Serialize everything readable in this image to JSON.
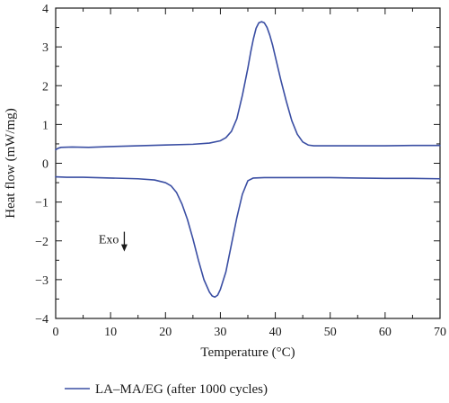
{
  "chart_data": {
    "type": "line",
    "xlabel": "Temperature (°C)",
    "ylabel": "Heat flow (mW/mg)",
    "xlim": [
      0,
      70
    ],
    "ylim": [
      -4,
      4
    ],
    "x_ticks": [
      0,
      10,
      20,
      30,
      40,
      50,
      60,
      70
    ],
    "y_ticks": [
      4,
      3,
      2,
      1,
      0,
      -1,
      -2,
      -3,
      -4
    ],
    "grid": false,
    "legend_position": "bottom",
    "annotation": {
      "text": "Exo",
      "arrow": "down",
      "x": 12.5,
      "y": -1.95
    },
    "series": [
      {
        "name": "LA–MA/EG (after 1000 cycles)",
        "color": "#3a4ea3",
        "segments": [
          {
            "x": [
              0,
              0.5,
              1,
              3,
              6,
              10,
              15,
              20,
              25,
              28,
              30,
              31,
              32,
              33,
              34,
              35,
              35.5,
              36,
              36.5,
              37,
              37.5,
              38,
              38.5,
              39,
              39.5,
              40,
              41,
              42,
              43,
              44,
              45,
              46,
              47,
              50,
              55,
              60,
              65,
              70
            ],
            "y": [
              0.35,
              0.39,
              0.41,
              0.42,
              0.41,
              0.43,
              0.45,
              0.47,
              0.49,
              0.52,
              0.58,
              0.66,
              0.82,
              1.15,
              1.75,
              2.45,
              2.85,
              3.2,
              3.48,
              3.62,
              3.65,
              3.62,
              3.5,
              3.3,
              3.05,
              2.75,
              2.15,
              1.6,
              1.1,
              0.75,
              0.55,
              0.47,
              0.45,
              0.45,
              0.45,
              0.45,
              0.46,
              0.46
            ]
          },
          {
            "x": [
              0,
              2,
              5,
              10,
              15,
              18,
              20,
              21,
              22,
              23,
              24,
              25,
              26,
              27,
              28,
              28.5,
              29,
              29.5,
              30,
              31,
              32,
              33,
              34,
              35,
              36,
              38,
              40,
              45,
              50,
              55,
              60,
              65,
              70
            ],
            "y": [
              -0.35,
              -0.36,
              -0.36,
              -0.38,
              -0.4,
              -0.43,
              -0.5,
              -0.58,
              -0.75,
              -1.05,
              -1.45,
              -1.95,
              -2.5,
              -3.0,
              -3.32,
              -3.42,
              -3.45,
              -3.4,
              -3.25,
              -2.8,
              -2.1,
              -1.4,
              -0.8,
              -0.45,
              -0.38,
              -0.37,
              -0.37,
              -0.37,
              -0.37,
              -0.38,
              -0.39,
              -0.39,
              -0.4
            ]
          }
        ]
      }
    ]
  }
}
